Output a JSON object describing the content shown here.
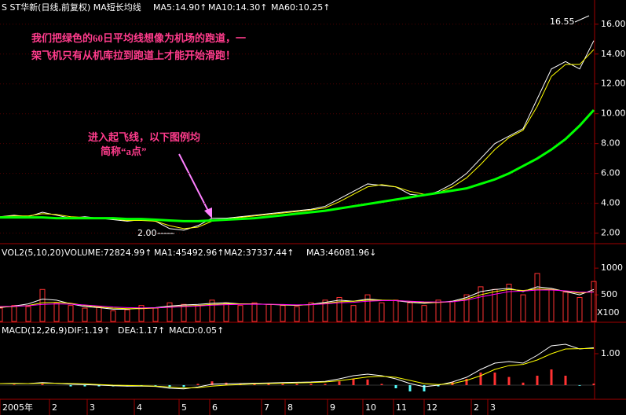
{
  "chart_data": [
    {
      "type": "line",
      "title": "S ST华新(日线,前复权) MA短长均线",
      "x": [
        0,
        6,
        12,
        18,
        24,
        30,
        36,
        42,
        48,
        54,
        60,
        66,
        72,
        78,
        84,
        90,
        96,
        102,
        108,
        114,
        120,
        126,
        132,
        138,
        144,
        150,
        156,
        162,
        168,
        174,
        180,
        186,
        192,
        198,
        204,
        210,
        216,
        222,
        228,
        234,
        240,
        246,
        252
      ],
      "xlim": [
        0,
        252
      ],
      "ylim": [
        1.4,
        17.2
      ],
      "yticks": [
        {
          "value": 2,
          "label": "2.00"
        },
        {
          "value": 4,
          "label": "4.00"
        },
        {
          "value": 6,
          "label": "6.00"
        },
        {
          "value": 8,
          "label": "8.00"
        },
        {
          "value": 10,
          "label": "10.00"
        },
        {
          "value": 12,
          "label": "12.00"
        },
        {
          "value": 14,
          "label": "14.00"
        },
        {
          "value": 16,
          "label": "16.00"
        }
      ],
      "grid": true,
      "series": [
        {
          "name": "MA5:14.90↑",
          "color": "#ffffff",
          "values": [
            3.1,
            3.2,
            3.1,
            3.4,
            3.2,
            3.0,
            3.1,
            3.0,
            2.9,
            2.8,
            2.9,
            2.8,
            2.3,
            2.2,
            2.5,
            3.0,
            3.0,
            3.1,
            3.2,
            3.3,
            3.4,
            3.5,
            3.6,
            3.8,
            4.3,
            4.8,
            5.3,
            5.2,
            5.1,
            4.6,
            4.5,
            4.8,
            5.3,
            6.0,
            7.0,
            8.0,
            8.5,
            9.0,
            11.0,
            13.0,
            13.5,
            13.0,
            14.9
          ]
        },
        {
          "name": "MA10:14.30↑",
          "color": "#ffff00",
          "values": [
            3.1,
            3.15,
            3.15,
            3.3,
            3.25,
            3.1,
            3.05,
            3.0,
            2.95,
            2.85,
            2.85,
            2.8,
            2.5,
            2.3,
            2.4,
            2.8,
            2.95,
            3.05,
            3.15,
            3.25,
            3.35,
            3.45,
            3.55,
            3.7,
            4.1,
            4.6,
            5.1,
            5.25,
            5.1,
            4.8,
            4.6,
            4.7,
            5.1,
            5.7,
            6.6,
            7.6,
            8.4,
            8.9,
            10.5,
            12.5,
            13.3,
            13.3,
            14.3
          ]
        },
        {
          "name": "MA60:10.25↑",
          "color": "#00ff00",
          "values": [
            3.05,
            3.05,
            3.05,
            3.05,
            3.0,
            3.0,
            3.0,
            3.0,
            3.0,
            2.95,
            2.95,
            2.9,
            2.85,
            2.8,
            2.8,
            2.85,
            2.9,
            2.95,
            3.0,
            3.1,
            3.2,
            3.3,
            3.4,
            3.5,
            3.65,
            3.8,
            3.95,
            4.1,
            4.25,
            4.4,
            4.55,
            4.7,
            4.85,
            5.0,
            5.3,
            5.6,
            6.0,
            6.5,
            7.0,
            7.6,
            8.3,
            9.2,
            10.25
          ]
        }
      ],
      "annotations": [
        "我们把绿色的60日平均线想像为机场的跑道，一",
        "架飞机只有从机库拉到跑道上才能开始滑跑！",
        "进入起飞线，以下图例均",
        "简称“a点”",
        "16.55",
        "2.00"
      ]
    },
    {
      "type": "bar",
      "title": "VOL2(5,10,20)",
      "value_name": "VOLUME:72824.99↑",
      "color": "#ff3232",
      "unit_label": "X100",
      "x": [
        0,
        6,
        12,
        18,
        24,
        30,
        36,
        42,
        48,
        54,
        60,
        66,
        72,
        78,
        84,
        90,
        96,
        102,
        108,
        114,
        120,
        126,
        132,
        138,
        144,
        150,
        156,
        162,
        168,
        174,
        180,
        186,
        192,
        198,
        204,
        210,
        216,
        222,
        228,
        234,
        240,
        246,
        252
      ],
      "xlim": [
        0,
        252
      ],
      "ylim": [
        0,
        1400
      ],
      "yticks": [
        500,
        1000
      ],
      "values": [
        250,
        300,
        280,
        600,
        350,
        300,
        250,
        280,
        200,
        220,
        300,
        250,
        350,
        320,
        300,
        400,
        350,
        300,
        350,
        320,
        300,
        280,
        350,
        400,
        450,
        300,
        500,
        350,
        400,
        350,
        300,
        400,
        380,
        500,
        650,
        600,
        700,
        500,
        900,
        600,
        550,
        450,
        750
      ],
      "series": [
        {
          "name": "MA1:45492.96↑",
          "color": "#ffffff",
          "values": [
            260,
            290,
            330,
            420,
            400,
            330,
            280,
            260,
            230,
            230,
            250,
            260,
            290,
            310,
            320,
            340,
            350,
            330,
            330,
            320,
            310,
            300,
            320,
            360,
            400,
            380,
            420,
            400,
            390,
            360,
            340,
            360,
            380,
            450,
            560,
            600,
            620,
            560,
            650,
            620,
            560,
            500,
            600
          ]
        },
        {
          "name": "MA2:37337.44↑",
          "color": "#ffff00",
          "values": [
            270,
            280,
            300,
            350,
            360,
            340,
            300,
            270,
            250,
            240,
            240,
            250,
            270,
            290,
            300,
            320,
            330,
            330,
            330,
            320,
            315,
            305,
            315,
            340,
            370,
            380,
            400,
            400,
            395,
            375,
            355,
            355,
            370,
            420,
            500,
            560,
            600,
            580,
            610,
            600,
            570,
            530,
            560
          ]
        },
        {
          "name": "MA3:46081.96↓",
          "color": "#ff00ff",
          "values": [
            280,
            285,
            295,
            320,
            330,
            325,
            310,
            290,
            270,
            260,
            255,
            255,
            265,
            280,
            290,
            305,
            315,
            320,
            325,
            322,
            318,
            312,
            315,
            330,
            350,
            360,
            380,
            390,
            390,
            380,
            368,
            365,
            370,
            400,
            460,
            510,
            560,
            570,
            590,
            590,
            575,
            550,
            550
          ]
        }
      ]
    },
    {
      "type": "line",
      "title": "MACD(12,26,9)",
      "x": [
        0,
        6,
        12,
        18,
        24,
        30,
        36,
        42,
        48,
        54,
        60,
        66,
        72,
        78,
        84,
        90,
        96,
        102,
        108,
        114,
        120,
        126,
        132,
        138,
        144,
        150,
        156,
        162,
        168,
        174,
        180,
        186,
        192,
        198,
        204,
        210,
        216,
        222,
        228,
        234,
        240,
        246,
        252
      ],
      "xlim": [
        0,
        252
      ],
      "ylim": [
        -0.45,
        1.95
      ],
      "yticks": [
        {
          "value": 1,
          "label": "1.00"
        }
      ],
      "xticks": [
        {
          "value": 0,
          "label": "2005年"
        },
        {
          "value": 21,
          "label": "2"
        },
        {
          "value": 37,
          "label": "3"
        },
        {
          "value": 57,
          "label": "4"
        },
        {
          "value": 76,
          "label": "5"
        },
        {
          "value": 89,
          "label": "6"
        },
        {
          "value": 111,
          "label": "7"
        },
        {
          "value": 121,
          "label": "8"
        },
        {
          "value": 139,
          "label": "9"
        },
        {
          "value": 154,
          "label": "10"
        },
        {
          "value": 167,
          "label": "11"
        },
        {
          "value": 180,
          "label": "12"
        },
        {
          "value": 200,
          "label": "2"
        },
        {
          "value": 207,
          "label": "3"
        }
      ],
      "series": [
        {
          "name": "DIF:1.19↑",
          "color": "#ffffff",
          "values": [
            0.05,
            0.06,
            0.05,
            0.08,
            0.06,
            0.03,
            0.02,
            0.0,
            -0.02,
            -0.03,
            -0.03,
            -0.04,
            -0.1,
            -0.12,
            -0.06,
            0.03,
            0.04,
            0.05,
            0.06,
            0.07,
            0.08,
            0.09,
            0.1,
            0.12,
            0.2,
            0.3,
            0.35,
            0.3,
            0.2,
            0.05,
            -0.05,
            0.0,
            0.1,
            0.25,
            0.5,
            0.7,
            0.75,
            0.7,
            0.95,
            1.25,
            1.3,
            1.15,
            1.19
          ]
        },
        {
          "name": "DEA:1.17↑",
          "color": "#ffff00",
          "values": [
            0.05,
            0.05,
            0.05,
            0.06,
            0.06,
            0.05,
            0.04,
            0.02,
            0.0,
            -0.01,
            -0.02,
            -0.03,
            -0.06,
            -0.09,
            -0.08,
            -0.03,
            0.0,
            0.02,
            0.04,
            0.05,
            0.06,
            0.07,
            0.08,
            0.1,
            0.14,
            0.2,
            0.26,
            0.28,
            0.25,
            0.15,
            0.05,
            0.02,
            0.05,
            0.15,
            0.3,
            0.5,
            0.62,
            0.66,
            0.8,
            1.0,
            1.15,
            1.16,
            1.17
          ]
        }
      ],
      "histogram": {
        "name": "MACD:0.05↑",
        "color": "#ff00ff",
        "values": [
          0,
          0.02,
          0,
          0.04,
          0,
          -0.04,
          -0.04,
          -0.04,
          -0.04,
          -0.04,
          -0.02,
          -0.02,
          -0.08,
          -0.06,
          0.04,
          0.12,
          0.08,
          0.06,
          0.04,
          0.04,
          0.04,
          0.04,
          0.04,
          0.04,
          0.12,
          0.2,
          0.18,
          0.04,
          -0.1,
          -0.2,
          -0.2,
          -0.04,
          0.1,
          0.2,
          0.4,
          0.4,
          0.26,
          0.08,
          0.3,
          0.5,
          0.3,
          -0.02,
          0.05
        ]
      }
    }
  ]
}
